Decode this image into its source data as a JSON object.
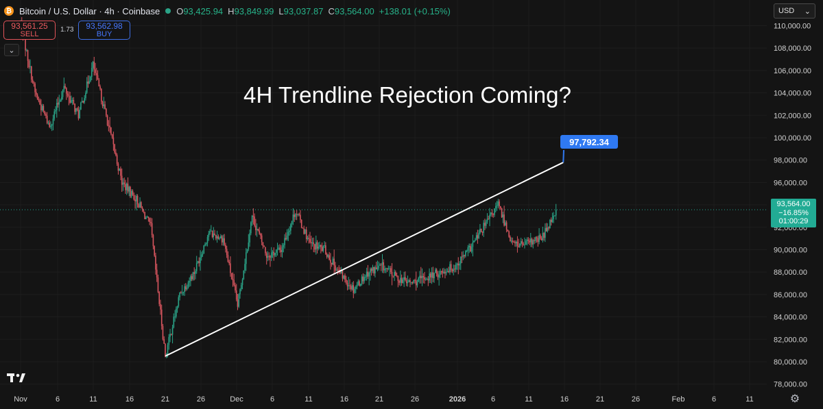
{
  "header": {
    "symbol": "Bitcoin / U.S. Dollar · 4h · Coinbase",
    "icon": "bitcoin-icon",
    "ohlc": [
      {
        "label": "O",
        "value": "93,425.94"
      },
      {
        "label": "H",
        "value": "93,849.99"
      },
      {
        "label": "L",
        "value": "93,037.87"
      },
      {
        "label": "C",
        "value": "93,564.00"
      }
    ],
    "change": "+138.01 (+0.15%)"
  },
  "trade": {
    "sell_price": "93,561.25",
    "sell_label": "SELL",
    "spread": "1.73",
    "buy_price": "93,562.98",
    "buy_label": "BUY"
  },
  "currency": {
    "value": "USD"
  },
  "colors": {
    "background": "#141414",
    "up": "#2aa387",
    "down": "#d9565f",
    "trendline": "#ffffff",
    "target_label": "#2f79f2",
    "price_tag": "#22ab94"
  },
  "chart_data": {
    "type": "candlestick",
    "title": "4H Trendline Rejection Coming?",
    "x_ticks": [
      "Nov",
      "6",
      "11",
      "16",
      "21",
      "26",
      "Dec",
      "6",
      "11",
      "16",
      "21",
      "26",
      "2026",
      "6",
      "11",
      "16",
      "21",
      "26",
      "Feb",
      "6",
      "11"
    ],
    "y_ticks": [
      "78,000.00",
      "80,000.00",
      "82,000.00",
      "84,000.00",
      "86,000.00",
      "88,000.00",
      "90,000.00",
      "92,000.00",
      "94,000.00",
      "96,000.00",
      "98,000.00",
      "100,000.00",
      "102,000.00",
      "104,000.00",
      "106,000.00",
      "108,000.00",
      "110,000.00"
    ],
    "ylim": [
      77000,
      111500
    ],
    "price_path": [
      {
        "date": "2025-11-01",
        "price": 110200
      },
      {
        "date": "2025-11-03",
        "price": 104000
      },
      {
        "date": "2025-11-05",
        "price": 101000
      },
      {
        "date": "2025-11-07",
        "price": 104500
      },
      {
        "date": "2025-11-09",
        "price": 102000
      },
      {
        "date": "2025-11-11",
        "price": 106500
      },
      {
        "date": "2025-11-13",
        "price": 101500
      },
      {
        "date": "2025-11-15",
        "price": 96000
      },
      {
        "date": "2025-11-17",
        "price": 94500
      },
      {
        "date": "2025-11-19",
        "price": 92000
      },
      {
        "date": "2025-11-21",
        "price": 80500
      },
      {
        "date": "2025-11-23",
        "price": 86000
      },
      {
        "date": "2025-11-25",
        "price": 88000
      },
      {
        "date": "2025-11-27",
        "price": 91500
      },
      {
        "date": "2025-11-29",
        "price": 91000
      },
      {
        "date": "2025-12-01",
        "price": 85000
      },
      {
        "date": "2025-12-03",
        "price": 93000
      },
      {
        "date": "2025-12-05",
        "price": 89500
      },
      {
        "date": "2025-12-07",
        "price": 90000
      },
      {
        "date": "2025-12-09",
        "price": 93500
      },
      {
        "date": "2025-12-11",
        "price": 90500
      },
      {
        "date": "2025-12-13",
        "price": 90000
      },
      {
        "date": "2025-12-15",
        "price": 88000
      },
      {
        "date": "2025-12-17",
        "price": 86500
      },
      {
        "date": "2025-12-19",
        "price": 88000
      },
      {
        "date": "2025-12-21",
        "price": 88500
      },
      {
        "date": "2025-12-23",
        "price": 87500
      },
      {
        "date": "2025-12-25",
        "price": 87000
      },
      {
        "date": "2025-12-27",
        "price": 87500
      },
      {
        "date": "2025-12-29",
        "price": 88000
      },
      {
        "date": "2025-12-31",
        "price": 88500
      },
      {
        "date": "2026-01-02",
        "price": 90000
      },
      {
        "date": "2026-01-04",
        "price": 92000
      },
      {
        "date": "2026-01-06",
        "price": 94000
      },
      {
        "date": "2026-01-08",
        "price": 90500
      },
      {
        "date": "2026-01-10",
        "price": 90500
      },
      {
        "date": "2026-01-12",
        "price": 91000
      },
      {
        "date": "2026-01-14",
        "price": 93564
      }
    ],
    "trendline": {
      "start": {
        "date": "2025-11-21",
        "price": 80500
      },
      "end": {
        "date": "2026-01-15",
        "price": 97792.34
      }
    },
    "target_label": "97,792.34",
    "last_price": {
      "price": "93,564.00",
      "change": "−16.85%",
      "countdown": "01:00:29"
    }
  }
}
